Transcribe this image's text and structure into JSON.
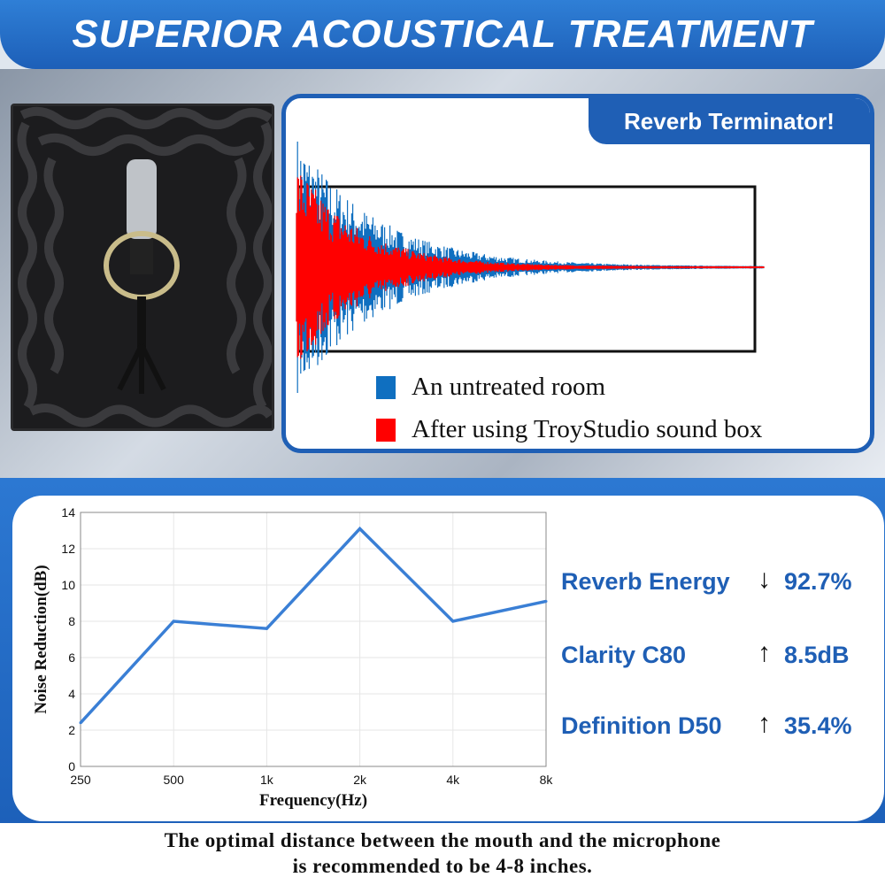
{
  "header": {
    "title": "SUPERIOR ACOUSTICAL TREATMENT"
  },
  "reverb_panel": {
    "badge": "Reverb Terminator!",
    "legend": [
      {
        "label": "An untreated room",
        "color": "#0f6fc0"
      },
      {
        "label": "After using TroyStudio sound box",
        "color": "#ff0000"
      }
    ]
  },
  "stats": [
    {
      "label": "Reverb Energy",
      "arrow": "↓",
      "value": "92.7%"
    },
    {
      "label": "Clarity C80",
      "arrow": "↑",
      "value": "8.5dB"
    },
    {
      "label": "Definition D50",
      "arrow": "↑",
      "value": "35.4%"
    }
  ],
  "note": {
    "line1": "The optimal distance between the mouth and the microphone",
    "line2": "is recommended to be 4-8 inches."
  },
  "chart_data": {
    "type": "line",
    "categories": [
      "250",
      "500",
      "1k",
      "2k",
      "4k",
      "8k"
    ],
    "values": [
      2.4,
      8.0,
      7.6,
      13.1,
      8.0,
      9.1
    ],
    "xlabel": "Frequency(Hz)",
    "ylabel": "Noise Reduction(dB)",
    "ylim": [
      0,
      14
    ],
    "yticks": [
      "0",
      "2",
      "4",
      "6",
      "8",
      "10",
      "12",
      "14"
    ],
    "grid": true,
    "color": "#3a7fd5"
  }
}
